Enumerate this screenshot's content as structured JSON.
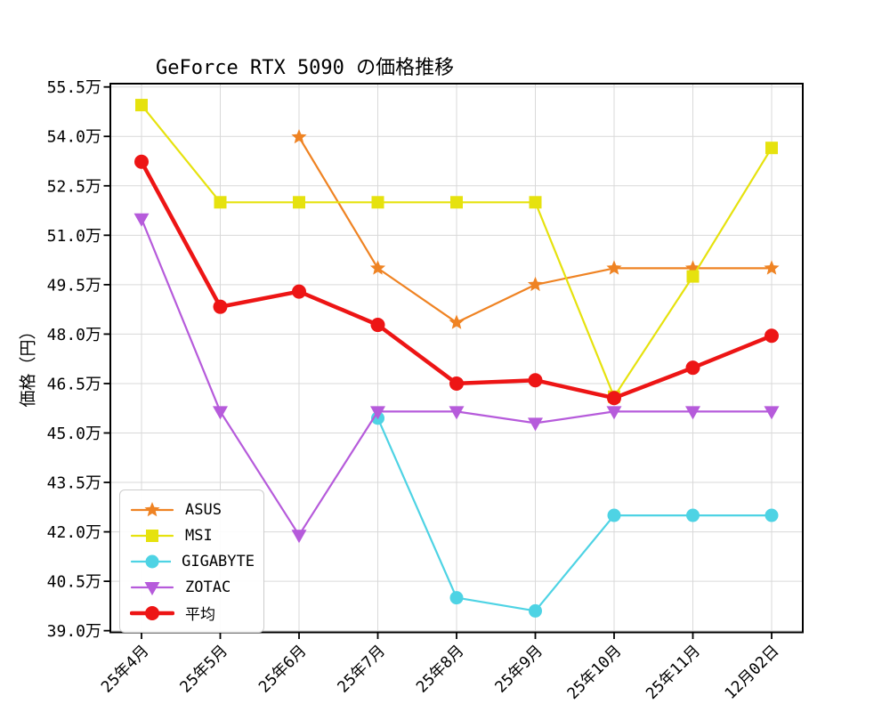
{
  "chart_data": {
    "type": "line",
    "title": "GeForce RTX 5090 の価格推移",
    "xlabel": "",
    "ylabel": "価格（円）",
    "unit_suffix": "万",
    "categories": [
      "25年4月",
      "25年5月",
      "25年6月",
      "25年7月",
      "25年8月",
      "25年9月",
      "25年10月",
      "25年11月",
      "12月02日"
    ],
    "y_tick_values": [
      39.0,
      40.5,
      42.0,
      43.5,
      45.0,
      46.5,
      48.0,
      49.5,
      51.0,
      52.5,
      54.0,
      55.5
    ],
    "ylim": [
      38.95,
      55.6
    ],
    "grid": true,
    "grid_color": "#d9d9d9",
    "axis_color": "#000000",
    "legend_position": "lower left",
    "x_tick_rotation": 45,
    "series": [
      {
        "id": "asus",
        "name": "ASUS",
        "color": "#ef8323",
        "marker": "star",
        "line_width": 2.2,
        "values": [
          null,
          null,
          53.98,
          50.0,
          48.35,
          49.5,
          50.0,
          50.0,
          50.0
        ]
      },
      {
        "id": "msi",
        "name": "MSI",
        "color": "#e6e20e",
        "marker": "square",
        "line_width": 2.2,
        "values": [
          54.95,
          52.0,
          52.0,
          52.0,
          52.0,
          52.0,
          46.1,
          49.75,
          53.65
        ]
      },
      {
        "id": "gigabyte",
        "name": "GIGABYTE",
        "color": "#4ed3e4",
        "marker": "circle",
        "line_width": 2.2,
        "values": [
          null,
          null,
          null,
          45.45,
          40.0,
          39.6,
          42.5,
          42.5,
          42.5
        ]
      },
      {
        "id": "zotac",
        "name": "ZOTAC",
        "color": "#b65bdb",
        "marker": "triangle-down",
        "line_width": 2.2,
        "values": [
          51.5,
          45.65,
          41.9,
          45.65,
          45.65,
          45.3,
          45.65,
          45.65,
          45.65
        ]
      },
      {
        "id": "avg",
        "name": "平均",
        "color": "#ed1515",
        "marker": "circle",
        "line_width": 4.5,
        "values": [
          53.23,
          48.83,
          49.29,
          48.28,
          46.5,
          46.6,
          46.06,
          46.98,
          47.95
        ]
      }
    ]
  }
}
